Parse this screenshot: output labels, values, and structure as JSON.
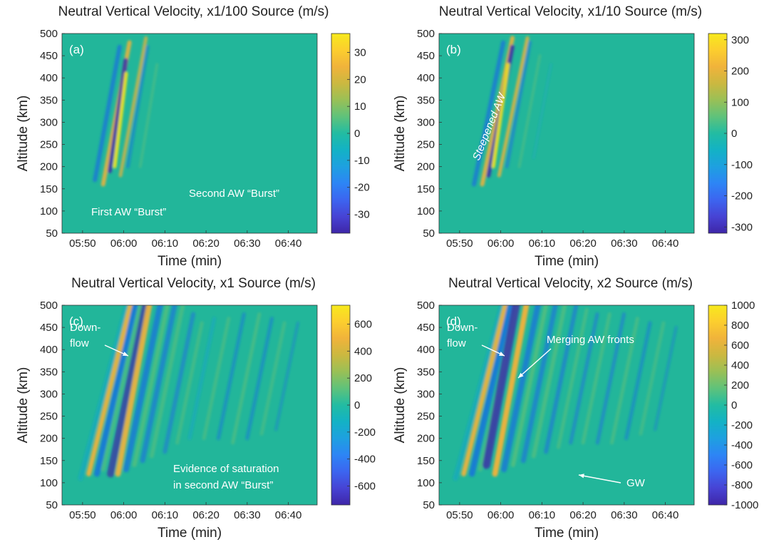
{
  "panels": [
    {
      "title": "Neutral Vertical Velocity, x1/100 Source (m/s)",
      "letter": "(a)",
      "annotations": [
        "First AW “Burst”",
        "Second AW “Burst”"
      ]
    },
    {
      "title": "Neutral Vertical Velocity, x1/10 Source (m/s)",
      "letter": "(b)",
      "annotations": [
        "Steepened AW"
      ]
    },
    {
      "title": "Neutral Vertical Velocity, x1 Source (m/s)",
      "letter": "(c)",
      "annotations": [
        "Down-",
        "flow",
        "Evidence of saturation",
        "in second AW “Burst”"
      ]
    },
    {
      "title": "Neutral Vertical Velocity, x2 Source (m/s)",
      "letter": "(d)",
      "annotations": [
        "Down-",
        "flow",
        "Merging AW fronts",
        "GW"
      ]
    }
  ],
  "chart_data": [
    {
      "type": "heatmap",
      "title": "Neutral Vertical Velocity, x1/100 Source (m/s)",
      "xlabel": "Time (min)",
      "ylabel": "Altitude (km)",
      "xticks": [
        "05:50",
        "06:00",
        "06:10",
        "06:20",
        "06:30",
        "06:40"
      ],
      "yticks": [
        50,
        100,
        150,
        200,
        250,
        300,
        350,
        400,
        450,
        500
      ],
      "ylim": [
        50,
        500
      ],
      "colorbar_ticks": [
        30,
        20,
        10,
        0,
        -10,
        -20,
        -30
      ],
      "clim": [
        -37,
        37
      ],
      "colormap": "parula",
      "background_value": 0
    },
    {
      "type": "heatmap",
      "title": "Neutral Vertical Velocity, x1/10 Source (m/s)",
      "xlabel": "Time (min)",
      "ylabel": "Altitude (km)",
      "xticks": [
        "05:50",
        "06:00",
        "06:10",
        "06:20",
        "06:30",
        "06:40"
      ],
      "yticks": [
        50,
        100,
        150,
        200,
        250,
        300,
        350,
        400,
        450,
        500
      ],
      "ylim": [
        50,
        500
      ],
      "colorbar_ticks": [
        300,
        200,
        100,
        0,
        -100,
        -200,
        -300
      ],
      "clim": [
        -320,
        320
      ],
      "colormap": "parula",
      "background_value": 0
    },
    {
      "type": "heatmap",
      "title": "Neutral Vertical Velocity, x1 Source (m/s)",
      "xlabel": "Time (min)",
      "ylabel": "Altitude (km)",
      "xticks": [
        "05:50",
        "06:00",
        "06:10",
        "06:20",
        "06:30",
        "06:40"
      ],
      "yticks": [
        50,
        100,
        150,
        200,
        250,
        300,
        350,
        400,
        450,
        500
      ],
      "ylim": [
        50,
        500
      ],
      "colorbar_ticks": [
        600,
        400,
        200,
        0,
        -200,
        -400,
        -600
      ],
      "clim": [
        -740,
        740
      ],
      "colormap": "parula",
      "background_value": 0
    },
    {
      "type": "heatmap",
      "title": "Neutral Vertical Velocity, x2 Source (m/s)",
      "xlabel": "Time (min)",
      "ylabel": "Altitude (km)",
      "xticks": [
        "05:50",
        "06:00",
        "06:10",
        "06:20",
        "06:30",
        "06:40"
      ],
      "yticks": [
        50,
        100,
        150,
        200,
        250,
        300,
        350,
        400,
        450,
        500
      ],
      "ylim": [
        50,
        500
      ],
      "colorbar_ticks": [
        1000,
        800,
        600,
        400,
        200,
        0,
        -200,
        -400,
        -600,
        -800,
        -1000
      ],
      "clim": [
        -1000,
        1000
      ],
      "colormap": "parula",
      "background_value": 0
    }
  ],
  "colors": {
    "bg": "#22b69a",
    "c_dark": "#3e33a6",
    "c_blue": "#1b77d9",
    "c_cyan": "#17a5c9",
    "c_green": "#5cc07a",
    "c_orange": "#f3b33a",
    "c_yellow": "#f6e61b"
  }
}
